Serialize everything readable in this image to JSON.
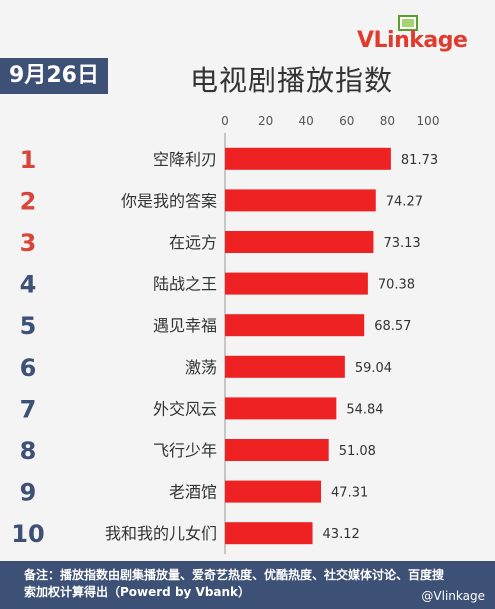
{
  "header": {
    "logo_text_v": "V",
    "logo_text_rest": "Linkage",
    "date": "9月26日",
    "title": "电视剧播放指数"
  },
  "colors": {
    "bar": "#ee2222",
    "rank_top3": "#d9453a",
    "rank_other": "#3d5075",
    "banner": "#3d5075"
  },
  "chart_data": {
    "type": "bar",
    "orientation": "horizontal",
    "title": "电视剧播放指数",
    "categories": [
      "空降利刃",
      "你是我的答案",
      "在远方",
      "陆战之王",
      "遇见幸福",
      "激荡",
      "外交风云",
      "飞行少年",
      "老酒馆",
      "我和我的儿女们"
    ],
    "ranks": [
      "1",
      "2",
      "3",
      "4",
      "5",
      "6",
      "7",
      "8",
      "9",
      "10"
    ],
    "values": [
      81.73,
      74.27,
      73.13,
      70.38,
      68.57,
      59.04,
      54.84,
      51.08,
      47.31,
      43.12
    ],
    "value_labels": [
      "81.73",
      "74.27",
      "73.13",
      "70.38",
      "68.57",
      "59.04",
      "54.84",
      "51.08",
      "47.31",
      "43.12"
    ],
    "xlim": [
      0,
      100
    ],
    "xticks": [
      "0",
      "20",
      "40",
      "60",
      "80",
      "100"
    ],
    "xlabel": "",
    "ylabel": ""
  },
  "footer": {
    "note": "备注：播放指数由剧集播放量、爱奇艺热度、优酷热度、社交媒体讨论、百度搜索加权计算得出（Powerd by Vbank）",
    "watermark": "@Vlinkage"
  }
}
